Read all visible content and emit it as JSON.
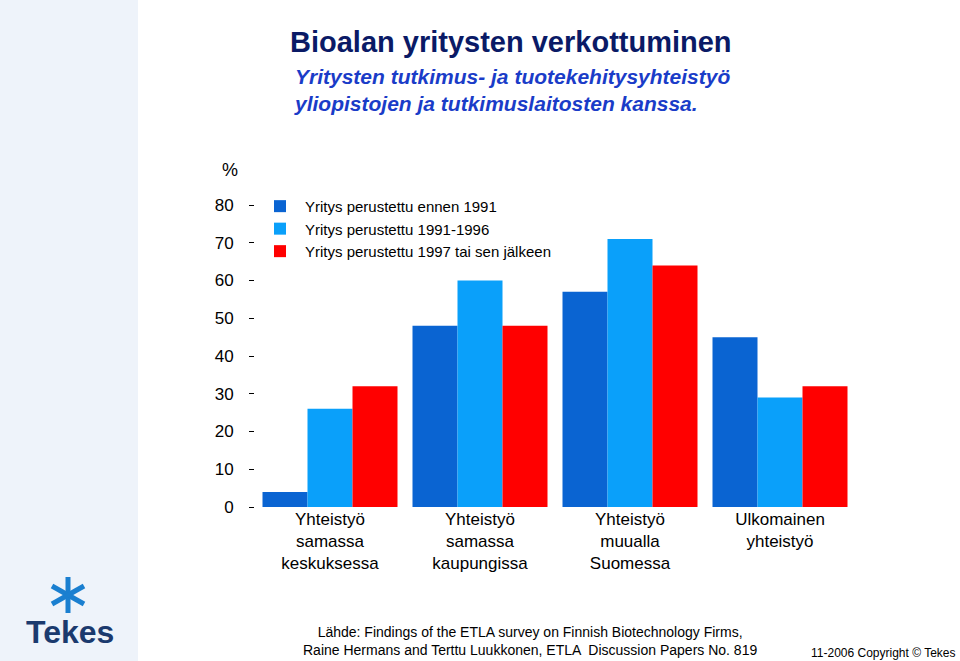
{
  "chart_data": {
    "type": "bar",
    "title": "Bioalan yritysten verkottuminen",
    "subtitle": [
      "Yritysten tutkimus- ja tuotekehitysyhteistyö",
      "yliopistojen ja tutkimuslaitosten kanssa."
    ],
    "y_label": "%",
    "categories": [
      "Yhteistyö samassa keskuksessa",
      "Yhteistyö samassa kaupungissa",
      "Yhteistyö muualla Suomessa",
      "Ulkomainen yhteistyö"
    ],
    "series": [
      {
        "name": "Yritys perustettu ennen 1991",
        "color": "#0a64d2",
        "values": [
          4,
          48,
          57,
          45
        ]
      },
      {
        "name": "Yritys perustettu 1991-1996",
        "color": "#0aa0fa",
        "values": [
          26,
          60,
          71,
          29
        ]
      },
      {
        "name": "Yritys perustettu 1997 tai sen jälkeen",
        "color": "#ff0000",
        "values": [
          32,
          48,
          64,
          32
        ]
      }
    ],
    "ylim": [
      0,
      80
    ],
    "yticks": [
      0,
      10,
      20,
      30,
      40,
      50,
      60,
      70,
      80
    ],
    "grid": false,
    "legend": "upper left",
    "source": [
      "Lähde: Findings of the ETLA survey on Finnish Biotechnology Firms,",
      "Raine Hermans and Terttu Luukkonen, ETLA  Discussion Papers No. 819"
    ],
    "copyright": "11-2006 Copyright © Tekes",
    "logo": "Tekes"
  }
}
